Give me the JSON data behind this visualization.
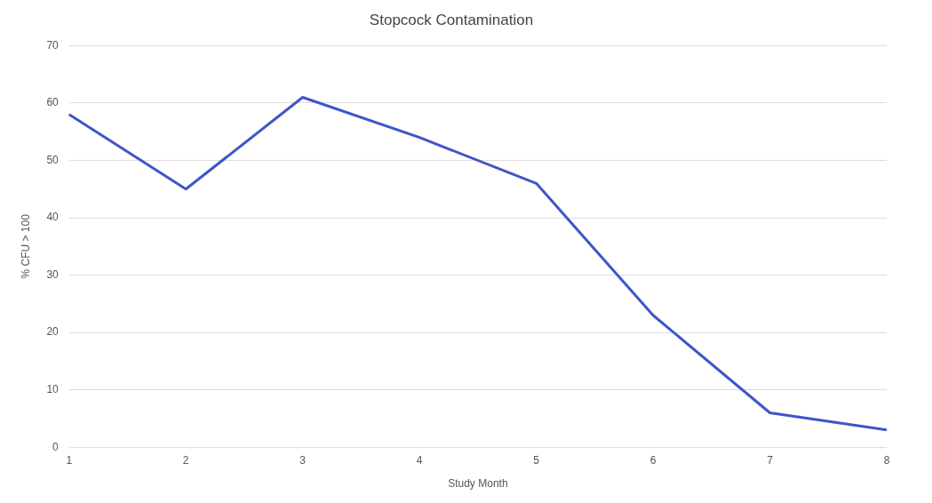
{
  "chart_data": {
    "type": "line",
    "title": "Stopcock Contamination",
    "xlabel": "Study Month",
    "ylabel": "% CFU > 100",
    "categories": [
      "1",
      "2",
      "3",
      "4",
      "5",
      "6",
      "7",
      "8"
    ],
    "series": [
      {
        "color": "#3f55c9",
        "values": [
          58,
          45,
          61,
          54,
          46,
          23,
          6,
          3
        ]
      }
    ],
    "ylim": [
      0,
      70
    ],
    "yticks": [
      0,
      10,
      20,
      30,
      40,
      50,
      60,
      70
    ],
    "grid": "y",
    "legend": false,
    "marker": "none",
    "line_style": "solid"
  }
}
